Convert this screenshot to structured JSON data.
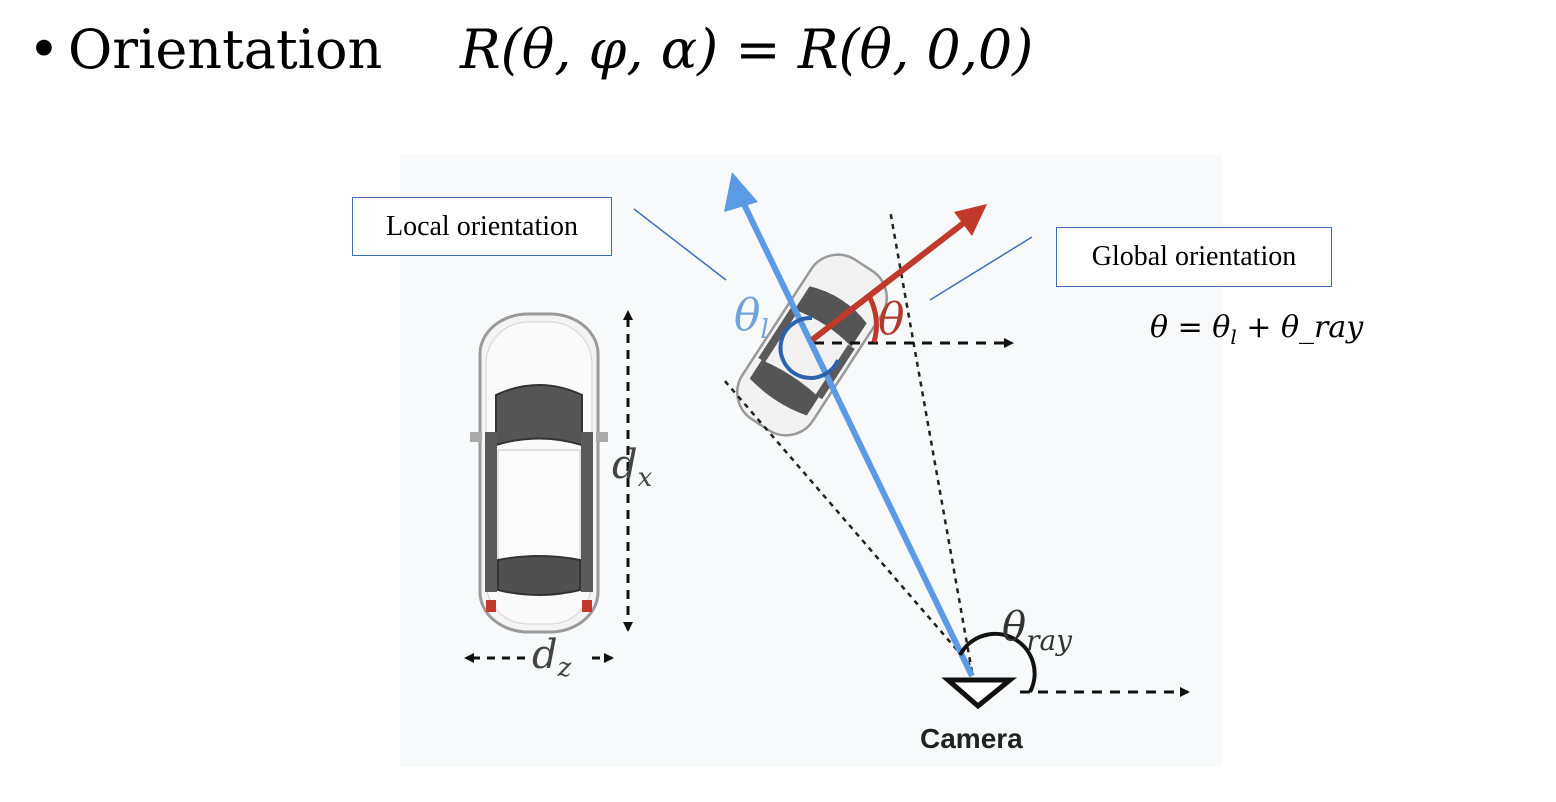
{
  "heading": {
    "bullet": "•",
    "title": "Orientation",
    "formula_lhs": "R(θ, φ, α)",
    "formula_eq": " = ",
    "formula_rhs": "R(θ, 0,0)"
  },
  "callouts": {
    "local": "Local orientation",
    "global": "Global orientation"
  },
  "side_equation": "θ = θ_l + θ_ray",
  "side_equation_parts": {
    "a": "θ = θ",
    "sub": "l",
    "b": " + θ_ray"
  },
  "labels": {
    "theta_l": "θ",
    "theta_l_sub": "l",
    "theta": "θ",
    "theta_ray": "θ",
    "theta_ray_sub": "ray",
    "dx": "d",
    "dx_sub": "x",
    "dz": "d",
    "dz_sub": "z",
    "camera": "Camera"
  },
  "colors": {
    "blue_arrow": "#5b9be6",
    "red_arrow": "#c0392b",
    "callout_border": "#3d6fb5",
    "arc_blue": "#2a62b0",
    "dark": "#111111"
  }
}
